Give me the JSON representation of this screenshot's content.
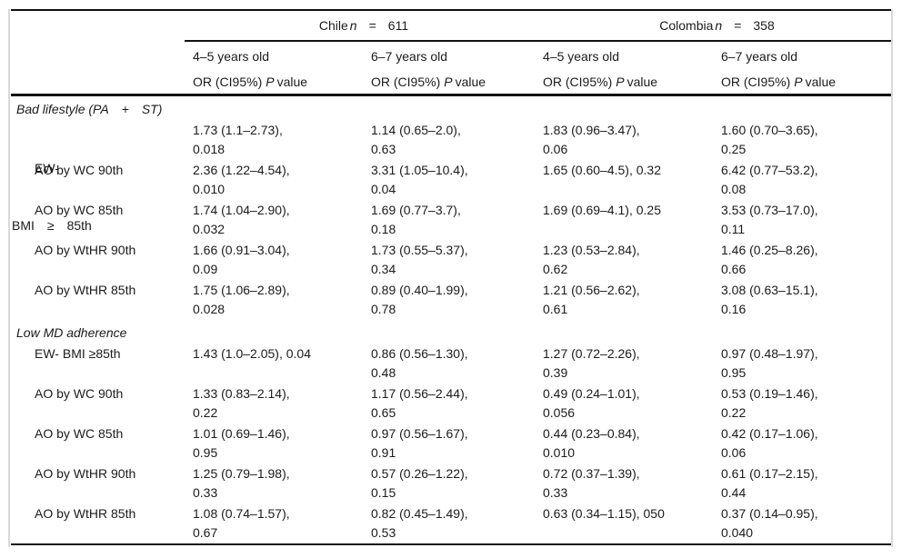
{
  "colors": {
    "rule": "#111111",
    "faint_border": "#d9d9d9",
    "text": "#1b1b1b"
  },
  "table": {
    "groups": [
      {
        "name": "Chile",
        "n": "n",
        "equals": "=",
        "value": "611"
      },
      {
        "name": "Colombia",
        "n": "n",
        "equals": "=",
        "value": "358"
      }
    ],
    "age_headers": [
      "4–5 years old",
      "6–7 years old",
      "4–5 years old",
      "6–7 years old"
    ],
    "measure_header": {
      "prefix": "OR (CI95%)",
      "p": "P",
      "suffix": "value"
    },
    "sections": [
      {
        "title": "Bad lifestyle (PA  +  ST)",
        "rows": [
          {
            "label_lines": [
              "EW-",
              "BMI  ≥  85th"
            ],
            "cells": [
              [
                "1.73 (1.1–2.73),",
                "0.018"
              ],
              [
                "1.14 (0.65–2.0),",
                "0.63"
              ],
              [
                "1.83 (0.96–3.47),",
                "0.06"
              ],
              [
                "1.60 (0.70–3.65),",
                "0.25"
              ]
            ]
          },
          {
            "label_lines": [
              "AO by WC 90th"
            ],
            "cells": [
              [
                "2.36 (1.22–4.54),",
                "0.010"
              ],
              [
                "3.31 (1.05–10.4),",
                "0.04"
              ],
              [
                "1.65 (0.60–4.5), 0.32",
                ""
              ],
              [
                "6.42 (0.77–53.2),",
                "0.08"
              ]
            ]
          },
          {
            "label_lines": [
              "AO by WC 85th"
            ],
            "cells": [
              [
                "1.74 (1.04–2.90),",
                "0.032"
              ],
              [
                "1.69 (0.77–3.7),",
                "0.18"
              ],
              [
                "1.69 (0.69–4.1), 0.25",
                ""
              ],
              [
                "3.53 (0.73–17.0),",
                "0.11"
              ]
            ]
          },
          {
            "label_lines": [
              "AO by WtHR 90th"
            ],
            "cells": [
              [
                "1.66 (0.91–3.04),",
                "0.09"
              ],
              [
                "1.73 (0.55–5.37),",
                "0.34"
              ],
              [
                "1.23 (0.53–2.84),",
                "0.62"
              ],
              [
                "1.46 (0.25–8.26),",
                "0.66"
              ]
            ]
          },
          {
            "label_lines": [
              "AO by WtHR 85th"
            ],
            "cells": [
              [
                "1.75 (1.06–2.89),",
                "0.028"
              ],
              [
                "0.89 (0.40–1.99),",
                "0.78"
              ],
              [
                "1.21 (0.56–2.62),",
                "0.61"
              ],
              [
                "3.08 (0.63–15.1),",
                "0.16"
              ]
            ]
          }
        ]
      },
      {
        "title": "Low MD adherence",
        "rows": [
          {
            "label_lines": [
              "EW- BMI ≥85th"
            ],
            "cells": [
              [
                "1.43 (1.0–2.05), 0.04",
                ""
              ],
              [
                "0.86 (0.56–1.30),",
                "0.48"
              ],
              [
                "1.27 (0.72–2.26),",
                "0.39"
              ],
              [
                "0.97 (0.48–1.97),",
                "0.95"
              ]
            ]
          },
          {
            "label_lines": [
              "AO by WC 90th"
            ],
            "cells": [
              [
                "1.33 (0.83–2.14),",
                "0.22"
              ],
              [
                "1.17 (0.56–2.44),",
                "0.65"
              ],
              [
                "0.49 (0.24–1.01),",
                "0.056"
              ],
              [
                "0.53 (0.19–1.46),",
                "0.22"
              ]
            ]
          },
          {
            "label_lines": [
              "AO by WC 85th"
            ],
            "cells": [
              [
                "1.01 (0.69–1.46),",
                "0.95"
              ],
              [
                "0.97 (0.56–1.67),",
                "0.91"
              ],
              [
                "0.44 (0.23–0.84),",
                "0.010"
              ],
              [
                "0.42 (0.17–1.06),",
                "0.06"
              ]
            ]
          },
          {
            "label_lines": [
              "AO by WtHR 90th"
            ],
            "cells": [
              [
                "1.25 (0.79–1.98),",
                "0.33"
              ],
              [
                "0.57 (0.26–1.22),",
                "0.15"
              ],
              [
                "0.72 (0.37–1.39),",
                "0.33"
              ],
              [
                "0.61 (0.17–2.15),",
                "0.44"
              ]
            ]
          },
          {
            "label_lines": [
              "AO by WtHR 85th"
            ],
            "cells": [
              [
                "1.08 (0.74–1.57),",
                "0.67"
              ],
              [
                "0.82 (0.45–1.49),",
                "0.53"
              ],
              [
                "0.63 (0.34–1.15), 050",
                ""
              ],
              [
                "0.37 (0.14–0.95),",
                "0.040"
              ]
            ]
          }
        ]
      }
    ]
  }
}
